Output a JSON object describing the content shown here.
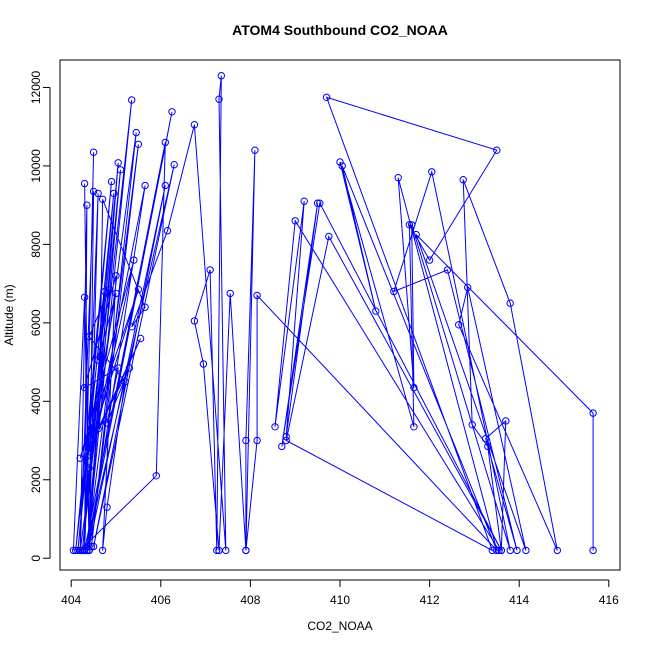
{
  "chart_data": {
    "type": "line",
    "title": "ATOM4 Southbound CO2_NOAA",
    "xlabel": "CO2_NOAA",
    "ylabel": "Altitude (m)",
    "xlim": [
      403.75,
      416.25
    ],
    "ylim": [
      -300,
      12700
    ],
    "x_ticks": [
      404,
      406,
      408,
      410,
      412,
      414,
      416
    ],
    "y_ticks": [
      0,
      2000,
      4000,
      6000,
      8000,
      10000,
      12000
    ],
    "grid": false,
    "colors": {
      "series": "#0000ff",
      "axis": "#000000",
      "background": "#ffffff"
    },
    "series": [
      {
        "marker": "open-circle",
        "points": [
          [
            404.05,
            200
          ],
          [
            404.3,
            6650
          ],
          [
            404.4,
            200
          ],
          [
            404.3,
            9550
          ],
          [
            404.4,
            200
          ],
          [
            404.5,
            9350
          ],
          [
            404.2,
            200
          ],
          [
            404.35,
            9000
          ],
          [
            404.3,
            200
          ],
          [
            404.5,
            10350
          ],
          [
            404.3,
            200
          ],
          [
            404.6,
            9300
          ],
          [
            404.4,
            200
          ],
          [
            404.75,
            6800
          ],
          [
            404.1,
            200
          ],
          [
            404.9,
            9600
          ],
          [
            404.15,
            200
          ],
          [
            404.95,
            9300
          ],
          [
            404.25,
            200
          ],
          [
            405.1,
            9900
          ],
          [
            404.35,
            200
          ],
          [
            405.05,
            10080
          ],
          [
            404.25,
            200
          ],
          [
            405.35,
            11680
          ],
          [
            404.35,
            200
          ],
          [
            405.5,
            10550
          ],
          [
            404.45,
            300
          ],
          [
            405.45,
            10850
          ],
          [
            404.2,
            200
          ],
          [
            405.9,
            2100
          ],
          [
            406.1,
            10600
          ],
          [
            404.3,
            200
          ],
          [
            406.25,
            11380
          ],
          [
            404.35,
            300
          ],
          [
            406.3,
            10030
          ],
          [
            404.5,
            300
          ],
          [
            406.1,
            9500
          ],
          [
            404.4,
            300
          ],
          [
            405.65,
            9500
          ],
          [
            404.4,
            2300
          ],
          [
            405.4,
            7600
          ],
          [
            404.2,
            2550
          ],
          [
            405.5,
            6850
          ],
          [
            404.35,
            2600
          ],
          [
            405.55,
            5600
          ],
          [
            404.6,
            3300
          ],
          [
            405.3,
            4850
          ],
          [
            404.8,
            3450
          ],
          [
            405.05,
            4850
          ],
          [
            404.3,
            4350
          ],
          [
            405.0,
            7200
          ],
          [
            404.7,
            200
          ],
          [
            404.8,
            1300
          ],
          [
            405.2,
            4500
          ],
          [
            404.4,
            5650
          ],
          [
            404.85,
            6850
          ],
          [
            404.6,
            5050
          ],
          [
            405.0,
            6750
          ],
          [
            404.4,
            2800
          ],
          [
            404.65,
            5150
          ],
          [
            404.7,
            9150
          ],
          [
            405.65,
            6400
          ],
          [
            405.35,
            5900
          ],
          [
            406.15,
            8350
          ],
          [
            406.75,
            11050
          ],
          [
            407.45,
            200
          ],
          [
            407.3,
            11700
          ],
          [
            407.35,
            12300
          ],
          [
            407.25,
            200
          ],
          [
            407.1,
            7350
          ],
          [
            406.75,
            6050
          ],
          [
            406.95,
            4950
          ],
          [
            407.3,
            200
          ],
          [
            407.55,
            6750
          ],
          [
            407.9,
            200
          ],
          [
            408.1,
            10400
          ],
          [
            407.9,
            3000
          ],
          [
            407.9,
            200
          ],
          [
            408.15,
            3000
          ],
          [
            408.15,
            6700
          ],
          [
            413.5,
            200
          ],
          [
            413.55,
            200
          ],
          [
            409.0,
            8600
          ],
          [
            408.55,
            3350
          ],
          [
            409.2,
            9100
          ],
          [
            408.8,
            3100
          ],
          [
            409.5,
            9050
          ],
          [
            408.7,
            2850
          ],
          [
            409.55,
            9050
          ],
          [
            413.6,
            200
          ],
          [
            409.75,
            8200
          ],
          [
            408.8,
            3000
          ],
          [
            413.4,
            200
          ],
          [
            409.7,
            11750
          ],
          [
            413.5,
            10400
          ],
          [
            412.0,
            7600
          ],
          [
            411.55,
            8500
          ],
          [
            411.65,
            3350
          ],
          [
            410.0,
            10100
          ],
          [
            410.8,
            6300
          ],
          [
            410.05,
            10000
          ],
          [
            413.5,
            200
          ],
          [
            411.3,
            9700
          ],
          [
            411.65,
            4350
          ],
          [
            411.6,
            8500
          ],
          [
            413.8,
            200
          ],
          [
            412.05,
            9850
          ],
          [
            411.2,
            6800
          ],
          [
            412.4,
            7350
          ],
          [
            413.95,
            200
          ],
          [
            413.25,
            3050
          ],
          [
            413.7,
            3500
          ],
          [
            413.6,
            200
          ],
          [
            413.3,
            2850
          ],
          [
            412.95,
            3400
          ],
          [
            412.75,
            9650
          ],
          [
            413.8,
            6500
          ],
          [
            414.85,
            200
          ],
          [
            412.65,
            5950
          ],
          [
            412.85,
            6900
          ],
          [
            414.15,
            200
          ],
          [
            411.7,
            8250
          ],
          [
            415.65,
            3700
          ],
          [
            415.65,
            200
          ]
        ]
      }
    ]
  }
}
